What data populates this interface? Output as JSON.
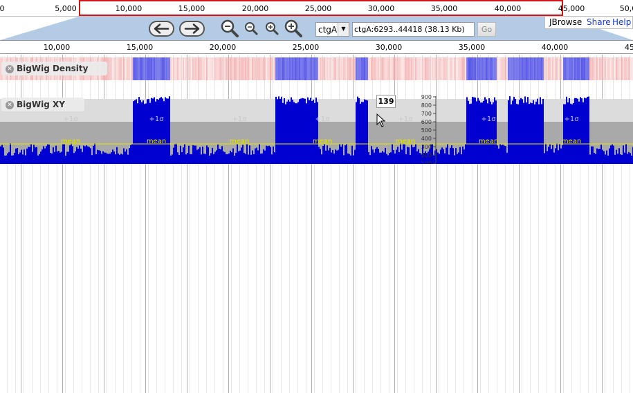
{
  "overview": {
    "ticks": [
      "0",
      "5,000",
      "10,000",
      "15,000",
      "20,000",
      "25,000",
      "30,000",
      "35,000",
      "40,000",
      "45,000",
      "50,0"
    ]
  },
  "navbar": {
    "refseq_selected": "ctgA",
    "location_value": "ctgA:6293..44418 (38.13 Kb)",
    "go_label": "Go"
  },
  "menubar": {
    "brand": "JBrowse",
    "share": "Share",
    "help": "Help"
  },
  "ruler": {
    "ticks": [
      "10,000",
      "15,000",
      "20,000",
      "25,000",
      "30,000",
      "35,000",
      "40,000",
      "45"
    ]
  },
  "tracks": {
    "density": {
      "label": "BigWig Density"
    },
    "xy": {
      "label": "BigWig XY",
      "stat_labels": [
        "+2σ",
        "+1σ",
        "mean"
      ],
      "y_axis_ticks": [
        "900",
        "800",
        "700",
        "600",
        "500",
        "400",
        "300",
        "200",
        "100"
      ]
    }
  },
  "tooltip": {
    "value": "139"
  },
  "colors": {
    "overview_highlight": "#d4161c",
    "nav_background": "#b3cbe4",
    "bar_fill": "#0000d0",
    "density_high": "#5a5ae8",
    "density_low": "#f2a8a8",
    "mean_line": "#e6e600",
    "link": "#1a37d4"
  },
  "icons": {
    "pan_left": "left-arrow-icon",
    "pan_right": "right-arrow-icon",
    "zoom_out_big": "zoom-out-big-icon",
    "zoom_out_small": "zoom-out-small-icon",
    "zoom_in_small": "zoom-in-small-icon",
    "zoom_in_big": "zoom-in-big-icon",
    "close": "close-icon",
    "cursor": "mouse-pointer-icon"
  }
}
